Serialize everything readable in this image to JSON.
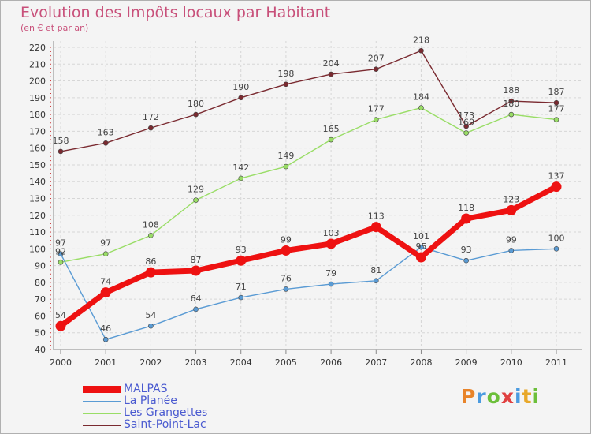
{
  "title": "Evolution des Impôts locaux par Habitant",
  "subtitle": "(en € et par an)",
  "logo": {
    "letters": [
      {
        "ch": "P",
        "color": "#e8842a"
      },
      {
        "ch": "r",
        "color": "#4b9be0"
      },
      {
        "ch": "o",
        "color": "#6cbf3a"
      },
      {
        "ch": "x",
        "color": "#e04040"
      },
      {
        "ch": "i",
        "color": "#4b9be0"
      },
      {
        "ch": "t",
        "color": "#e8a82a"
      },
      {
        "ch": "i",
        "color": "#6cbf3a"
      }
    ]
  },
  "chart_data": {
    "type": "line",
    "x": [
      "2000",
      "2001",
      "2002",
      "2003",
      "2004",
      "2005",
      "2006",
      "2007",
      "2008",
      "2009",
      "2010",
      "2011"
    ],
    "ylim": [
      40,
      220
    ],
    "yticks": [
      40,
      50,
      60,
      70,
      80,
      90,
      100,
      110,
      120,
      130,
      140,
      150,
      160,
      170,
      180,
      190,
      200,
      210,
      220
    ],
    "grid": true,
    "legend": "bottom-left",
    "series": [
      {
        "name": "MALPAS",
        "color": "#ee1111",
        "thick": true,
        "values": [
          54,
          74,
          86,
          87,
          93,
          99,
          103,
          113,
          95,
          118,
          123,
          137
        ],
        "labels": [
          "54",
          "74",
          "86",
          "87",
          "93",
          "99",
          "103",
          "113",
          "95",
          "118",
          "123",
          "137"
        ]
      },
      {
        "name": "La Planée",
        "color": "#5a9bd4",
        "thick": false,
        "values": [
          97,
          46,
          54,
          64,
          71,
          76,
          79,
          81,
          101,
          93,
          99,
          100
        ],
        "labels": [
          "97",
          "46",
          "54",
          "64",
          "71",
          "76",
          "79",
          "81",
          "101",
          "93",
          "99",
          "100"
        ]
      },
      {
        "name": "Les Grangettes",
        "color": "#99dd66",
        "thick": false,
        "values": [
          92,
          97,
          108,
          129,
          142,
          149,
          165,
          177,
          184,
          169,
          180,
          177
        ],
        "labels": [
          "92",
          "97",
          "108",
          "129",
          "142",
          "149",
          "165",
          "177",
          "184",
          "169",
          "180",
          "177"
        ]
      },
      {
        "name": "Saint-Point-Lac",
        "color": "#7a2a30",
        "thick": false,
        "values": [
          158,
          163,
          172,
          180,
          190,
          198,
          204,
          207,
          218,
          173,
          188,
          187
        ],
        "labels": [
          "158",
          "163",
          "172",
          "180",
          "190",
          "198",
          "204",
          "207",
          "218",
          "173",
          "188",
          "187"
        ]
      }
    ]
  }
}
